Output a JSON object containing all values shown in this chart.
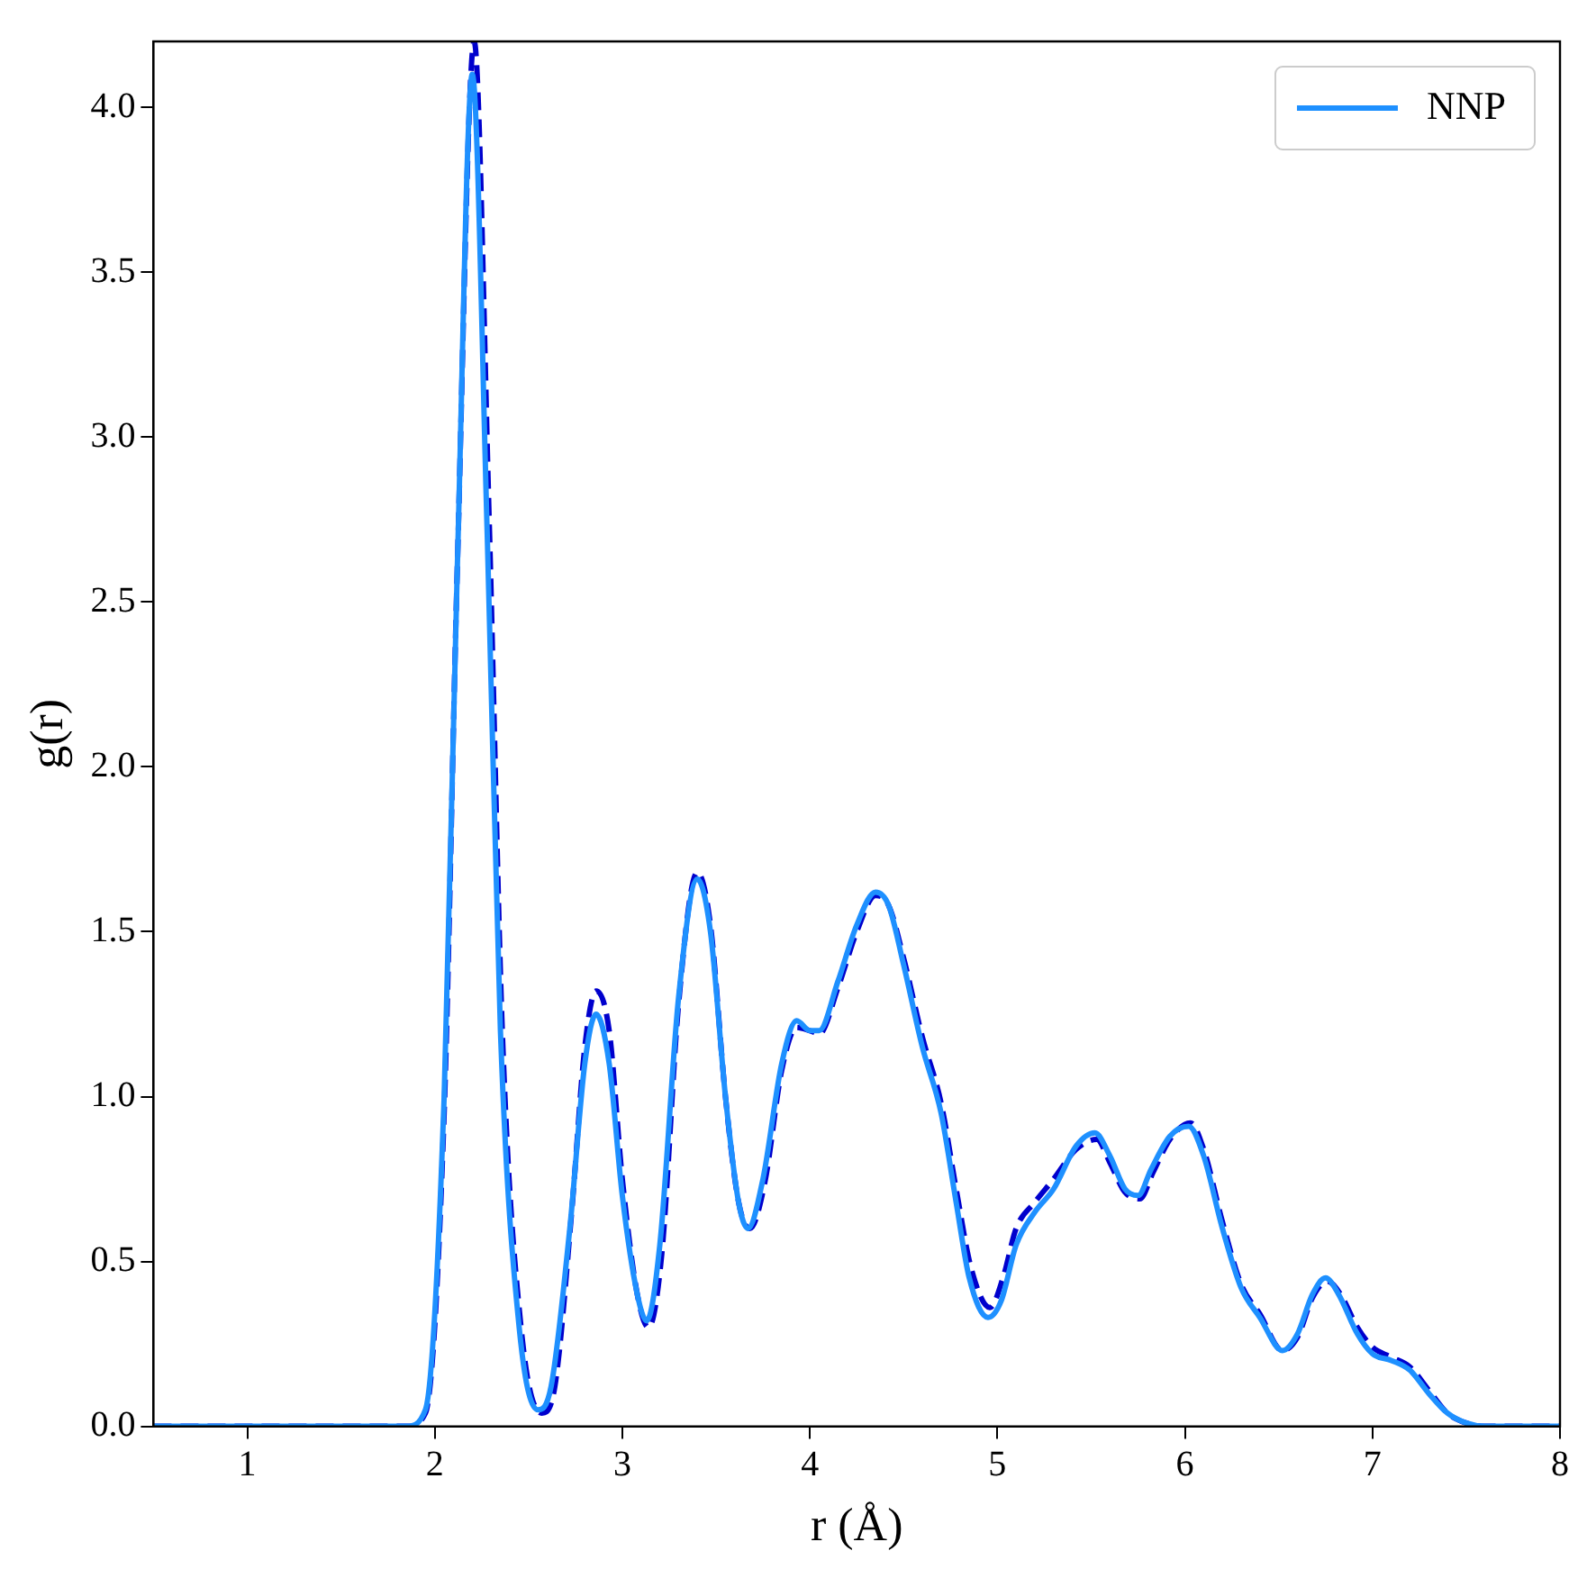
{
  "chart_data": {
    "type": "line",
    "xlabel": "r (Å)",
    "ylabel": "g(r)",
    "xlim": [
      0.5,
      8
    ],
    "xticks": [
      1,
      2,
      3,
      4,
      5,
      6,
      7,
      8
    ],
    "ylim": [
      0,
      4.2
    ],
    "yticks": [
      {
        "value": 0,
        "label": "0.0"
      },
      {
        "value": 0.5,
        "label": "0.5"
      },
      {
        "value": 1,
        "label": "1.0"
      },
      {
        "value": 1.5,
        "label": "1.5"
      },
      {
        "value": 2,
        "label": "2.0"
      },
      {
        "value": 2.5,
        "label": "2.5"
      },
      {
        "value": 3,
        "label": "3.0"
      },
      {
        "value": 3.5,
        "label": "3.5"
      },
      {
        "value": 4,
        "label": "4.0"
      }
    ],
    "grid": false,
    "legend": "top right",
    "marker": "none",
    "series": [
      {
        "color": "#0000cd",
        "line_style": "dashed",
        "x": [
          0.5,
          1.85,
          1.95,
          2.05,
          2.12,
          2.21,
          2.29,
          2.36,
          2.46,
          2.57,
          2.64,
          2.73,
          2.8,
          2.86,
          2.93,
          3.0,
          3.08,
          3.14,
          3.21,
          3.3,
          3.4,
          3.47,
          3.55,
          3.62,
          3.68,
          3.76,
          3.85,
          3.93,
          4.0,
          4.05,
          4.15,
          4.25,
          4.35,
          4.42,
          4.5,
          4.6,
          4.7,
          4.78,
          4.86,
          4.96,
          5.03,
          5.1,
          5.2,
          5.3,
          5.42,
          5.53,
          5.6,
          5.68,
          5.76,
          5.83,
          5.92,
          6.03,
          6.1,
          6.2,
          6.3,
          6.4,
          6.52,
          6.6,
          6.68,
          6.76,
          6.83,
          6.92,
          7.0,
          7.1,
          7.2,
          7.3,
          7.4,
          7.5,
          7.6,
          8
        ],
        "values": [
          0,
          0,
          0.04,
          0.95,
          2.6,
          4.2,
          2.75,
          1.2,
          0.3,
          0.04,
          0.12,
          0.65,
          1.15,
          1.32,
          1.2,
          0.75,
          0.4,
          0.3,
          0.52,
          1.28,
          1.68,
          1.52,
          1.0,
          0.68,
          0.6,
          0.74,
          1.08,
          1.21,
          1.2,
          1.19,
          1.33,
          1.5,
          1.61,
          1.58,
          1.42,
          1.18,
          0.98,
          0.72,
          0.48,
          0.36,
          0.45,
          0.6,
          0.68,
          0.75,
          0.84,
          0.87,
          0.8,
          0.71,
          0.69,
          0.77,
          0.87,
          0.92,
          0.84,
          0.62,
          0.43,
          0.34,
          0.23,
          0.27,
          0.39,
          0.44,
          0.4,
          0.3,
          0.24,
          0.21,
          0.18,
          0.11,
          0.04,
          0.01,
          0,
          0
        ]
      },
      {
        "name": "NNP",
        "color": "#1e90ff",
        "x": [
          0.5,
          1.85,
          1.95,
          2.05,
          2.12,
          2.2,
          2.28,
          2.35,
          2.45,
          2.55,
          2.62,
          2.72,
          2.8,
          2.86,
          2.93,
          3.0,
          3.08,
          3.13,
          3.2,
          3.3,
          3.4,
          3.47,
          3.55,
          3.62,
          3.67,
          3.75,
          3.85,
          3.93,
          4.0,
          4.05,
          4.15,
          4.25,
          4.35,
          4.42,
          4.5,
          4.6,
          4.7,
          4.78,
          4.85,
          4.95,
          5.02,
          5.1,
          5.2,
          5.3,
          5.42,
          5.52,
          5.6,
          5.68,
          5.75,
          5.82,
          5.92,
          6.02,
          6.1,
          6.2,
          6.3,
          6.4,
          6.52,
          6.6,
          6.68,
          6.75,
          6.82,
          6.92,
          7.0,
          7.1,
          7.2,
          7.3,
          7.4,
          7.5,
          7.6,
          8
        ],
        "values": [
          0,
          0,
          0.05,
          1.0,
          2.6,
          4.1,
          2.7,
          1.2,
          0.3,
          0.05,
          0.12,
          0.6,
          1.1,
          1.25,
          1.1,
          0.7,
          0.4,
          0.32,
          0.55,
          1.3,
          1.66,
          1.5,
          1.0,
          0.68,
          0.6,
          0.75,
          1.1,
          1.23,
          1.2,
          1.2,
          1.35,
          1.52,
          1.62,
          1.58,
          1.4,
          1.15,
          0.95,
          0.68,
          0.45,
          0.33,
          0.38,
          0.55,
          0.65,
          0.72,
          0.85,
          0.89,
          0.82,
          0.72,
          0.7,
          0.78,
          0.88,
          0.91,
          0.82,
          0.6,
          0.42,
          0.33,
          0.23,
          0.28,
          0.4,
          0.45,
          0.4,
          0.28,
          0.22,
          0.2,
          0.17,
          0.1,
          0.04,
          0.01,
          0,
          0
        ]
      }
    ]
  }
}
